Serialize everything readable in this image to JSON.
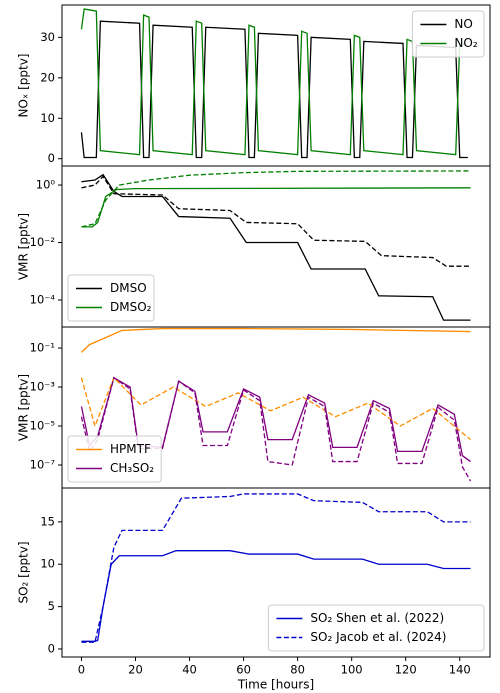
{
  "chart_data": [
    {
      "type": "line",
      "ylabel": "NOₓ [pptv]",
      "log": false,
      "legend": "upper right",
      "xlim": [
        -7.2,
        151.2
      ],
      "ylim": [
        -1.8,
        38.0
      ],
      "yticks": [
        0,
        10,
        20,
        30
      ],
      "series": [
        {
          "name": "NO",
          "color": "#000000",
          "dash": false,
          "x": [
            0,
            1,
            5.5,
            7,
            21.5,
            23,
            25,
            26.5,
            41,
            42.5,
            44.5,
            46,
            60.5,
            62,
            64,
            65.5,
            80,
            81.5,
            83.5,
            85,
            99.5,
            101,
            103,
            104.5,
            119,
            120.5,
            122.5,
            124,
            138.5,
            140,
            143
          ],
          "values": [
            6.5,
            0.3,
            0.3,
            34,
            33.5,
            0.3,
            0.3,
            33,
            32.5,
            0.3,
            0.3,
            32.5,
            32,
            0.3,
            0.3,
            31,
            30.5,
            0.3,
            0.3,
            30,
            29.5,
            0.3,
            0.3,
            29,
            28.5,
            0.3,
            0.3,
            28,
            27.5,
            0.3,
            0.3
          ]
        },
        {
          "name": "NO₂",
          "color": "#008000",
          "dash": false,
          "x": [
            0,
            1,
            5.5,
            7,
            21.5,
            23,
            25,
            26.5,
            41,
            42.5,
            44.5,
            46,
            60.5,
            62,
            64,
            65.5,
            80,
            81.5,
            83.5,
            85,
            99.5,
            101,
            103,
            104.5,
            119,
            120.5,
            122.5,
            124,
            138.5,
            140,
            143
          ],
          "values": [
            32,
            37,
            36.5,
            2,
            1,
            35.5,
            35,
            2,
            1,
            34,
            33.5,
            2,
            1,
            33,
            32.5,
            2,
            1,
            31.5,
            31,
            2,
            1,
            30.5,
            30,
            2,
            1,
            29.5,
            29,
            2,
            1,
            28.5,
            28
          ]
        }
      ]
    },
    {
      "type": "line",
      "ylabel": "VMR [pptv]",
      "log": true,
      "legend": "lower left",
      "xlim": [
        -7.2,
        151.2
      ],
      "ylim": [
        4.6,
        1.15e-05
      ],
      "yticks": [
        {
          "value": 0.0001,
          "label": "10⁻⁴"
        },
        {
          "value": 0.01,
          "label": "10⁻²"
        },
        {
          "value": 1,
          "label": "10⁰"
        }
      ],
      "series": [
        {
          "name": "DMSO",
          "color": "#000000",
          "dash": false,
          "x": [
            0,
            5,
            8,
            12,
            15,
            30,
            36,
            55,
            61,
            80,
            85,
            105,
            110,
            130,
            134,
            144
          ],
          "values": [
            1.3,
            1.5,
            2.3,
            0.6,
            0.4,
            0.4,
            0.08,
            0.07,
            0.01,
            0.01,
            0.0012,
            0.0012,
            0.00014,
            0.00013,
            2e-05,
            2e-05
          ]
        },
        {
          "name": "DMSO₂",
          "color": "#008000",
          "dash": false,
          "x": [
            0,
            4,
            6,
            9,
            13,
            20,
            144
          ],
          "values": [
            0.035,
            0.035,
            0.05,
            0.4,
            0.7,
            0.75,
            0.8
          ]
        },
        {
          "color": "#000000",
          "dash": true,
          "x": [
            0,
            5,
            8,
            12,
            30,
            36,
            55,
            61,
            80,
            86,
            105,
            111,
            130,
            135,
            144
          ],
          "values": [
            0.8,
            1,
            2,
            0.5,
            0.45,
            0.15,
            0.13,
            0.05,
            0.045,
            0.012,
            0.011,
            0.0035,
            0.003,
            0.0015,
            0.0015
          ]
        },
        {
          "color": "#008000",
          "dash": true,
          "x": [
            0,
            5,
            9,
            14,
            25,
            40,
            60,
            80,
            144
          ],
          "values": [
            0.035,
            0.045,
            0.3,
            1,
            1.5,
            2.2,
            2.7,
            3,
            3.1
          ]
        }
      ]
    },
    {
      "type": "line",
      "ylabel": "VMR [pptv]",
      "log": true,
      "legend": "lower left",
      "xlim": [
        -7.2,
        151.2
      ],
      "ylim": [
        1.2,
        6.6e-09
      ],
      "yticks": [
        {
          "value": 1e-07,
          "label": "10⁻⁷"
        },
        {
          "value": 1e-05,
          "label": "10⁻⁵"
        },
        {
          "value": 0.001,
          "label": "10⁻³"
        },
        {
          "value": 0.1,
          "label": "10⁻¹"
        }
      ],
      "series": [
        {
          "name": "HPMTF",
          "color": "#ff8c00",
          "dash": false,
          "x": [
            0,
            3,
            8,
            15,
            30,
            60,
            100,
            144
          ],
          "values": [
            0.06,
            0.15,
            0.3,
            0.8,
            1.0,
            1.0,
            0.9,
            0.7
          ]
        },
        {
          "name": "CH₃SO₂",
          "color": "#800080",
          "dash": false,
          "x": [
            0,
            3,
            6,
            12,
            18,
            21,
            30,
            36,
            42,
            45,
            54,
            60,
            66,
            69,
            78,
            84,
            90,
            93,
            102,
            108,
            114,
            117,
            126,
            132,
            138,
            141,
            144
          ],
          "values": [
            0.0001,
            1e-06,
            3e-06,
            0.003,
            0.001,
            1e-06,
            8e-07,
            0.002,
            0.0006,
            5e-06,
            5e-06,
            0.0008,
            0.0003,
            2e-06,
            2e-06,
            0.0004,
            0.00015,
            8e-07,
            8e-07,
            0.0002,
            8e-05,
            5e-07,
            5e-07,
            0.00012,
            4e-05,
            3e-07,
            1.5e-07
          ]
        },
        {
          "color": "#ff8c00",
          "dash": true,
          "x": [
            0,
            5,
            12,
            22,
            34,
            46,
            58,
            70,
            82,
            94,
            106,
            118,
            130,
            144
          ],
          "values": [
            0.003,
            1e-05,
            0.003,
            0.00012,
            0.001,
            0.0001,
            0.0005,
            6e-05,
            0.0003,
            3e-05,
            0.00015,
            1e-05,
            8e-05,
            2e-06
          ]
        },
        {
          "color": "#800080",
          "dash": true,
          "x": [
            0,
            3,
            6,
            12,
            18,
            21,
            30,
            36,
            42,
            45,
            54,
            60,
            66,
            69,
            78,
            84,
            90,
            93,
            102,
            108,
            114,
            117,
            126,
            132,
            138,
            141,
            144
          ],
          "values": [
            3e-05,
            5e-07,
            2e-06,
            0.003,
            0.0008,
            7e-07,
            7e-07,
            0.002,
            0.0005,
            1e-06,
            1e-06,
            0.0007,
            0.0002,
            1.5e-07,
            1e-07,
            0.0003,
            0.0001,
            1.5e-07,
            1.5e-07,
            0.00015,
            5e-05,
            1.2e-07,
            1.2e-07,
            9e-05,
            2e-05,
            8e-08,
            1.5e-08
          ]
        }
      ]
    },
    {
      "type": "line",
      "ylabel": "SO₂ [pptv]",
      "xlabel": "Time [hours]",
      "log": false,
      "legend": "lower right",
      "xlim": [
        -7.2,
        151.2
      ],
      "xticks": [
        0,
        20,
        40,
        60,
        80,
        100,
        120,
        140
      ],
      "ylim": [
        -0.95,
        19.0
      ],
      "yticks": [
        0,
        5,
        10,
        15
      ],
      "series": [
        {
          "name": "SO₂ Shen et al. (2022)",
          "color": "#0000cd",
          "dash": false,
          "x": [
            0,
            5,
            6,
            8,
            11,
            14,
            30,
            35,
            55,
            62,
            80,
            86,
            104,
            110,
            128,
            134,
            144
          ],
          "values": [
            0.9,
            0.9,
            1,
            5,
            10,
            11,
            11,
            11.6,
            11.6,
            11.2,
            11.2,
            10.6,
            10.6,
            10,
            10,
            9.5,
            9.5
          ]
        },
        {
          "name": "SO₂ Jacob et al. (2024)",
          "color": "#0000cd",
          "dash": true,
          "x": [
            0,
            5,
            8,
            12,
            15,
            30,
            37,
            55,
            60,
            80,
            86,
            104,
            110,
            128,
            134,
            144
          ],
          "values": [
            0.8,
            0.8,
            5,
            12,
            14,
            14,
            17.8,
            18,
            18.3,
            18.3,
            17.5,
            17.3,
            16.2,
            16.2,
            15,
            15
          ]
        }
      ]
    }
  ]
}
